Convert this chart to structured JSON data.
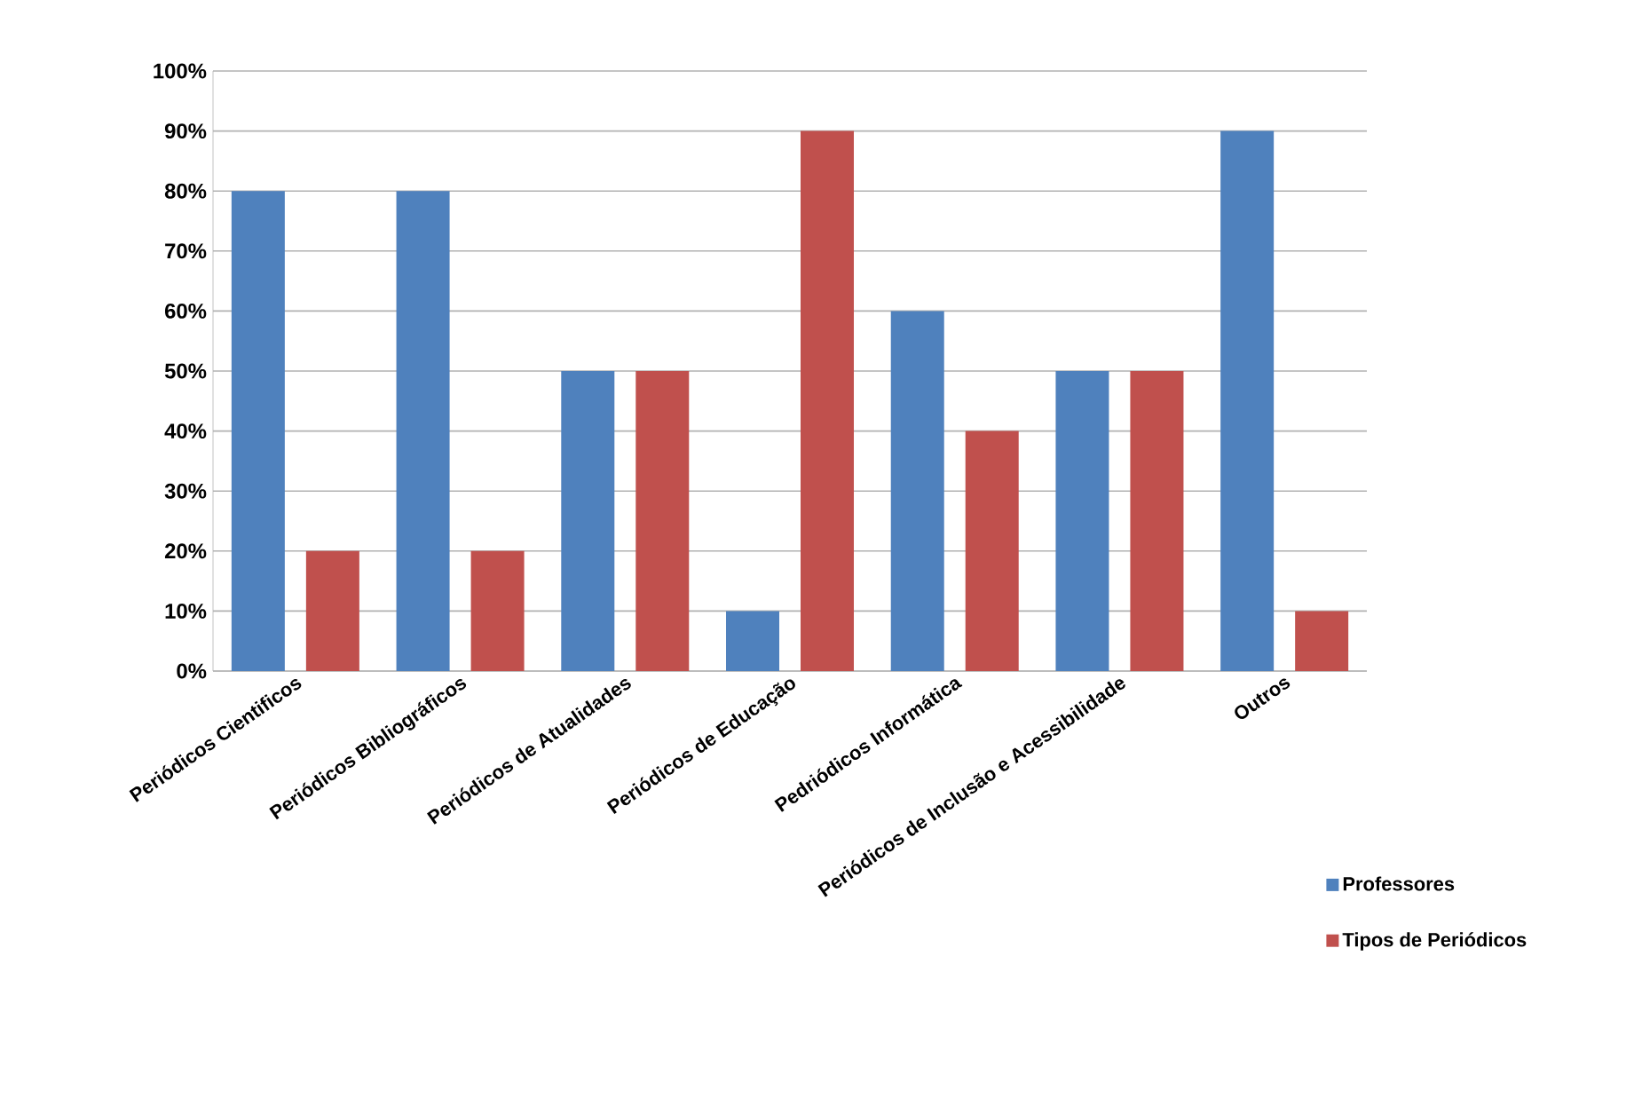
{
  "chart_data": {
    "type": "bar",
    "categories": [
      "Periódicos Cientificos",
      "Periódicos Bibliográficos",
      "Periódicos de Atualidades",
      "Periódicos de Educação",
      "Pedriódicos Informática",
      "Periódicos de Inclusão e Acessibilidade",
      "Outros"
    ],
    "series": [
      {
        "name": "Professores",
        "color": "#4f81bd",
        "values": [
          80,
          80,
          50,
          10,
          60,
          50,
          90
        ]
      },
      {
        "name": "Tipos de Periódicos",
        "color": "#c0504d",
        "values": [
          20,
          20,
          50,
          90,
          40,
          50,
          10
        ]
      }
    ],
    "ylim": [
      0,
      100
    ],
    "yticks": [
      {
        "value": 0,
        "label": "0%"
      },
      {
        "value": 10,
        "label": "10%"
      },
      {
        "value": 20,
        "label": "20%"
      },
      {
        "value": 30,
        "label": "30%"
      },
      {
        "value": 40,
        "label": "40%"
      },
      {
        "value": 50,
        "label": "50%"
      },
      {
        "value": 60,
        "label": "60%"
      },
      {
        "value": 70,
        "label": "70%"
      },
      {
        "value": 80,
        "label": "80%"
      },
      {
        "value": 90,
        "label": "90%"
      },
      {
        "value": 100,
        "label": "100%"
      }
    ],
    "grid": "y",
    "legend": "bottom right"
  }
}
